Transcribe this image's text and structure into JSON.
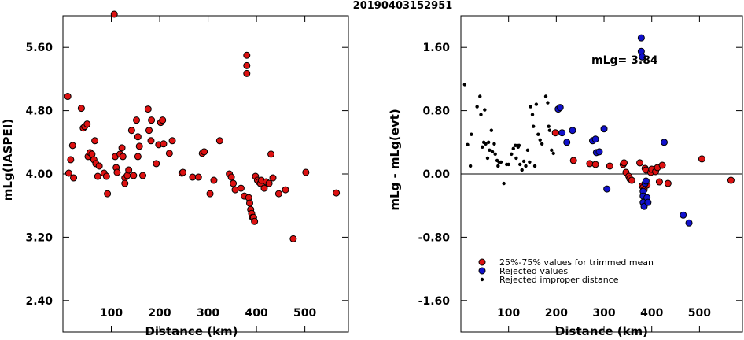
{
  "title": "20190403152951",
  "colors": {
    "trimmed": "#dd1111",
    "rejected": "#1111cc",
    "improper": "#000000",
    "frame": "#000000"
  },
  "chart_data": [
    {
      "type": "scatter",
      "xlabel": "Distance (km)",
      "ylabel": "mLg(IASPEI)",
      "xlim": [
        0,
        590
      ],
      "ylim": [
        2.0,
        6.0
      ],
      "xticks": [
        "100",
        "200",
        "300",
        "400",
        "500"
      ],
      "xtick_values": [
        100,
        200,
        300,
        400,
        500
      ],
      "yticks": [
        "2.40",
        "3.20",
        "4.00",
        "4.80",
        "5.60"
      ],
      "ytick_values": [
        2.4,
        3.2,
        4.0,
        4.8,
        5.6
      ],
      "series": [
        {
          "kind": "trimmed",
          "points": [
            [
              10,
              4.98
            ],
            [
              12,
              4.01
            ],
            [
              16,
              4.18
            ],
            [
              20,
              4.36
            ],
            [
              22,
              3.95
            ],
            [
              38,
              4.83
            ],
            [
              42,
              4.58
            ],
            [
              45,
              4.6
            ],
            [
              50,
              4.63
            ],
            [
              52,
              4.22
            ],
            [
              56,
              4.27
            ],
            [
              60,
              4.25
            ],
            [
              64,
              4.18
            ],
            [
              66,
              4.42
            ],
            [
              68,
              4.13
            ],
            [
              72,
              3.97
            ],
            [
              75,
              4.1
            ],
            [
              85,
              4.01
            ],
            [
              90,
              3.97
            ],
            [
              92,
              3.75
            ],
            [
              106,
              6.02
            ],
            [
              108,
              4.22
            ],
            [
              110,
              4.08
            ],
            [
              112,
              4.02
            ],
            [
              118,
              4.25
            ],
            [
              122,
              4.33
            ],
            [
              124,
              4.22
            ],
            [
              128,
              3.95
            ],
            [
              128,
              3.88
            ],
            [
              133,
              3.98
            ],
            [
              136,
              4.05
            ],
            [
              142,
              4.55
            ],
            [
              146,
              3.98
            ],
            [
              152,
              4.68
            ],
            [
              155,
              4.47
            ],
            [
              155,
              4.22
            ],
            [
              158,
              4.35
            ],
            [
              165,
              3.98
            ],
            [
              176,
              4.82
            ],
            [
              178,
              4.55
            ],
            [
              182,
              4.42
            ],
            [
              183,
              4.68
            ],
            [
              193,
              4.13
            ],
            [
              198,
              4.37
            ],
            [
              202,
              4.65
            ],
            [
              206,
              4.68
            ],
            [
              208,
              4.38
            ],
            [
              220,
              4.26
            ],
            [
              226,
              4.42
            ],
            [
              246,
              4.01
            ],
            [
              248,
              4.02
            ],
            [
              268,
              3.96
            ],
            [
              280,
              3.96
            ],
            [
              288,
              4.26
            ],
            [
              292,
              4.28
            ],
            [
              304,
              3.75
            ],
            [
              312,
              3.92
            ],
            [
              324,
              4.42
            ],
            [
              344,
              4.0
            ],
            [
              348,
              3.96
            ],
            [
              352,
              3.88
            ],
            [
              356,
              3.8
            ],
            [
              368,
              3.82
            ],
            [
              375,
              3.72
            ],
            [
              380,
              5.5
            ],
            [
              380,
              5.37
            ],
            [
              380,
              5.27
            ],
            [
              384,
              3.7
            ],
            [
              386,
              3.63
            ],
            [
              388,
              3.55
            ],
            [
              390,
              3.5
            ],
            [
              392,
              3.45
            ],
            [
              394,
              3.45
            ],
            [
              396,
              3.4
            ],
            [
              398,
              3.97
            ],
            [
              402,
              3.92
            ],
            [
              405,
              3.9
            ],
            [
              408,
              3.88
            ],
            [
              410,
              3.92
            ],
            [
              416,
              3.82
            ],
            [
              420,
              3.9
            ],
            [
              426,
              3.88
            ],
            [
              430,
              4.25
            ],
            [
              434,
              3.95
            ],
            [
              446,
              3.75
            ],
            [
              460,
              3.8
            ],
            [
              476,
              3.18
            ],
            [
              502,
              4.02
            ],
            [
              565,
              3.76
            ]
          ]
        }
      ]
    },
    {
      "type": "scatter",
      "xlabel": "Distance (km)",
      "ylabel": "mLg - mLg(evt)",
      "xlim": [
        0,
        590
      ],
      "ylim": [
        -2.0,
        2.0
      ],
      "xticks": [
        "100",
        "200",
        "300",
        "400",
        "500"
      ],
      "xtick_values": [
        100,
        200,
        300,
        400,
        500
      ],
      "yticks": [
        "-1.60",
        "-0.80",
        "0.00",
        "0.80",
        "1.60"
      ],
      "ytick_values": [
        -1.6,
        -0.8,
        0.0,
        0.8,
        1.6
      ],
      "annotation": "mLg= 3.84",
      "series": [
        {
          "kind": "trimmed",
          "name": "25%-75% values for trimmed mean",
          "points": [
            [
              198,
              0.52
            ],
            [
              236,
              0.17
            ],
            [
              270,
              0.13
            ],
            [
              282,
              0.12
            ],
            [
              312,
              0.1
            ],
            [
              340,
              0.12
            ],
            [
              342,
              0.14
            ],
            [
              346,
              0.02
            ],
            [
              352,
              -0.03
            ],
            [
              354,
              -0.06
            ],
            [
              358,
              -0.08
            ],
            [
              375,
              0.14
            ],
            [
              380,
              -0.15
            ],
            [
              382,
              -0.17
            ],
            [
              384,
              -0.2
            ],
            [
              386,
              0.07
            ],
            [
              388,
              0.05
            ],
            [
              390,
              -0.14
            ],
            [
              398,
              0.02
            ],
            [
              400,
              0.06
            ],
            [
              408,
              0.03
            ],
            [
              412,
              0.08
            ],
            [
              416,
              -0.1
            ],
            [
              422,
              0.11
            ],
            [
              434,
              -0.12
            ],
            [
              505,
              0.19
            ],
            [
              566,
              -0.08
            ]
          ]
        },
        {
          "kind": "rejected",
          "name": "Rejected values",
          "points": [
            [
              204,
              0.82
            ],
            [
              208,
              0.84
            ],
            [
              212,
              0.52
            ],
            [
              222,
              0.4
            ],
            [
              234,
              0.55
            ],
            [
              276,
              0.42
            ],
            [
              282,
              0.44
            ],
            [
              284,
              0.27
            ],
            [
              290,
              0.28
            ],
            [
              300,
              0.57
            ],
            [
              306,
              -0.19
            ],
            [
              378,
              1.72
            ],
            [
              378,
              1.55
            ],
            [
              380,
              1.48
            ],
            [
              382,
              -0.22
            ],
            [
              382,
              -0.28
            ],
            [
              382,
              -0.36
            ],
            [
              384,
              -0.41
            ],
            [
              386,
              -0.12
            ],
            [
              388,
              -0.09
            ],
            [
              390,
              -0.3
            ],
            [
              392,
              -0.36
            ],
            [
              426,
              0.4
            ],
            [
              466,
              -0.52
            ],
            [
              478,
              -0.62
            ]
          ]
        },
        {
          "kind": "improper",
          "name": "Rejected improper distance",
          "points": [
            [
              8,
              1.13
            ],
            [
              14,
              0.37
            ],
            [
              20,
              0.1
            ],
            [
              22,
              0.5
            ],
            [
              34,
              0.85
            ],
            [
              40,
              0.98
            ],
            [
              42,
              0.75
            ],
            [
              45,
              0.34
            ],
            [
              48,
              0.4
            ],
            [
              50,
              0.81
            ],
            [
              52,
              0.38
            ],
            [
              56,
              0.2
            ],
            [
              58,
              0.4
            ],
            [
              60,
              0.3
            ],
            [
              64,
              0.55
            ],
            [
              66,
              0.28
            ],
            [
              70,
              0.38
            ],
            [
              72,
              0.25
            ],
            [
              76,
              0.17
            ],
            [
              78,
              0.1
            ],
            [
              80,
              0.15
            ],
            [
              84,
              0.15
            ],
            [
              90,
              -0.12
            ],
            [
              96,
              0.12
            ],
            [
              100,
              0.12
            ],
            [
              106,
              0.25
            ],
            [
              110,
              0.32
            ],
            [
              114,
              0.36
            ],
            [
              116,
              0.2
            ],
            [
              118,
              0.36
            ],
            [
              120,
              0.34
            ],
            [
              122,
              0.36
            ],
            [
              124,
              0.12
            ],
            [
              128,
              0.05
            ],
            [
              132,
              0.16
            ],
            [
              136,
              0.1
            ],
            [
              140,
              0.3
            ],
            [
              144,
              0.15
            ],
            [
              146,
              0.85
            ],
            [
              150,
              0.75
            ],
            [
              152,
              0.6
            ],
            [
              155,
              0.1
            ],
            [
              158,
              0.88
            ],
            [
              162,
              0.5
            ],
            [
              166,
              0.43
            ],
            [
              170,
              0.38
            ],
            [
              178,
              0.98
            ],
            [
              182,
              0.9
            ],
            [
              184,
              0.6
            ],
            [
              186,
              0.55
            ],
            [
              190,
              0.3
            ],
            [
              194,
              0.26
            ]
          ]
        }
      ]
    }
  ]
}
